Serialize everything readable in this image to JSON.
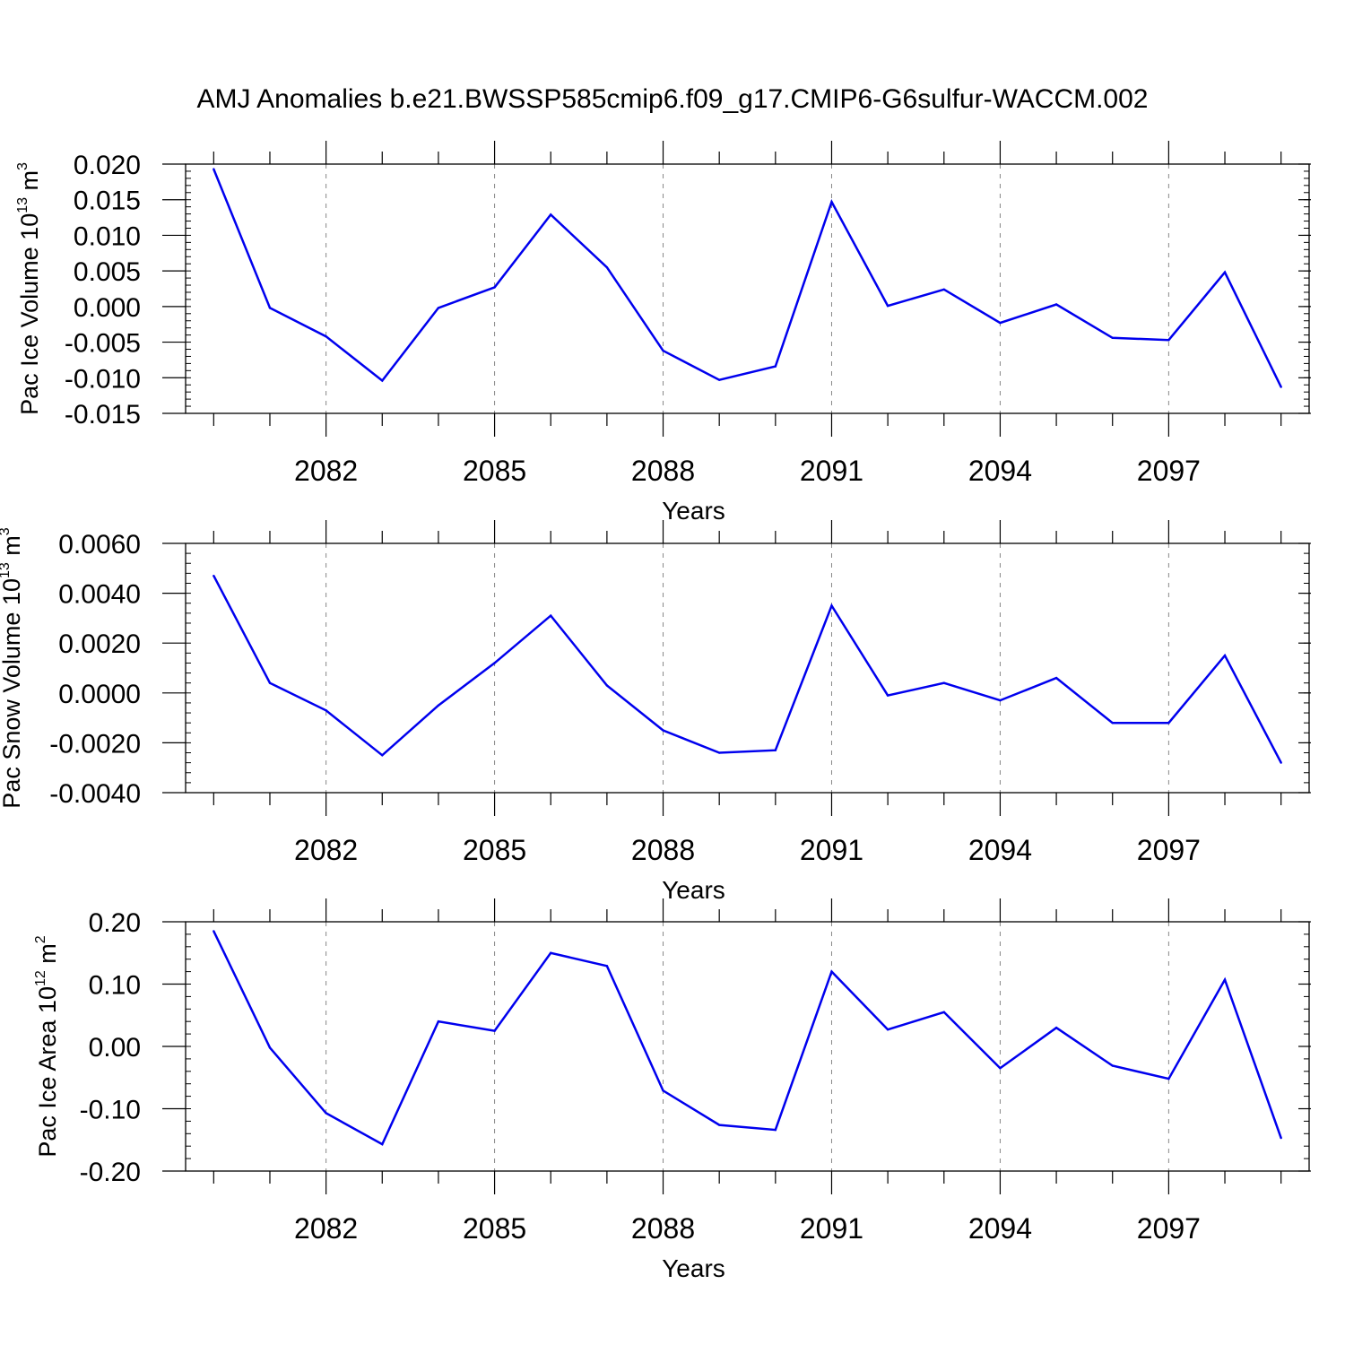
{
  "title": "AMJ Anomalies b.e21.BWSSP585cmip6.f09_g17.CMIP6-G6sulfur-WACCM.002",
  "colors": {
    "line": "#0000ee",
    "axis": "#000000",
    "grid": "#888888"
  },
  "chart_data": [
    {
      "type": "line",
      "ylabel": {
        "main": "Pac Ice Volume 10",
        "sup": "13",
        "unit": " m",
        "unit_sup": "3"
      },
      "xlabel": "Years",
      "x": [
        2080,
        2081,
        2082,
        2083,
        2084,
        2085,
        2086,
        2087,
        2088,
        2089,
        2090,
        2091,
        2092,
        2093,
        2094,
        2095,
        2096,
        2097,
        2098,
        2099
      ],
      "series": [
        {
          "name": "Pac Ice Volume",
          "values": [
            0.0193,
            -0.0002,
            -0.0042,
            -0.0104,
            -0.0002,
            0.0027,
            0.0129,
            0.0055,
            -0.0062,
            -0.0103,
            -0.0084,
            0.0147,
            0.0001,
            0.0024,
            -0.0023,
            0.0003,
            -0.0044,
            -0.0047,
            0.0048,
            -0.0113
          ]
        }
      ],
      "xlim": [
        2079.5,
        2099.5
      ],
      "ylim": [
        -0.015,
        0.02
      ],
      "xticks": [
        2082,
        2085,
        2088,
        2091,
        2094,
        2097
      ],
      "xtick_labels": [
        "2082",
        "2085",
        "2088",
        "2091",
        "2094",
        "2097"
      ],
      "yticks": [
        0.02,
        0.015,
        0.01,
        0.005,
        0.0,
        -0.005,
        -0.01,
        -0.015
      ],
      "ytick_labels": [
        "0.020",
        "0.015",
        "0.010",
        "0.005",
        "0.000",
        "-0.005",
        "-0.010",
        "-0.015"
      ],
      "minor_yticks": 0.001,
      "grid": "dashed vertical at major x ticks"
    },
    {
      "type": "line",
      "ylabel": {
        "main": "Pac Snow Volume 10",
        "sup": "13",
        "unit": " m",
        "unit_sup": "3"
      },
      "xlabel": "Years",
      "x": [
        2080,
        2081,
        2082,
        2083,
        2084,
        2085,
        2086,
        2087,
        2088,
        2089,
        2090,
        2091,
        2092,
        2093,
        2094,
        2095,
        2096,
        2097,
        2098,
        2099
      ],
      "series": [
        {
          "name": "Pac Snow Volume",
          "values": [
            0.0047,
            0.0004,
            -0.0007,
            -0.0025,
            -0.0005,
            0.0012,
            0.0031,
            0.0003,
            -0.0015,
            -0.0024,
            -0.0023,
            0.0035,
            -0.0001,
            0.0004,
            -0.0003,
            0.0006,
            -0.0012,
            -0.0012,
            0.0015,
            -0.0028
          ]
        }
      ],
      "xlim": [
        2079.5,
        2099.5
      ],
      "ylim": [
        -0.004,
        0.006
      ],
      "xticks": [
        2082,
        2085,
        2088,
        2091,
        2094,
        2097
      ],
      "xtick_labels": [
        "2082",
        "2085",
        "2088",
        "2091",
        "2094",
        "2097"
      ],
      "yticks": [
        0.006,
        0.004,
        0.002,
        0.0,
        -0.002,
        -0.004
      ],
      "ytick_labels": [
        "0.0060",
        "0.0040",
        "0.0020",
        "0.0000",
        "-0.0020",
        "-0.0040"
      ],
      "minor_yticks": 0.0004,
      "grid": "dashed vertical at major x ticks"
    },
    {
      "type": "line",
      "ylabel": {
        "main": "Pac Ice Area 10",
        "sup": "12",
        "unit": " m",
        "unit_sup": "2"
      },
      "xlabel": "Years",
      "x": [
        2080,
        2081,
        2082,
        2083,
        2084,
        2085,
        2086,
        2087,
        2088,
        2089,
        2090,
        2091,
        2092,
        2093,
        2094,
        2095,
        2096,
        2097,
        2098,
        2099
      ],
      "series": [
        {
          "name": "Pac Ice Area",
          "values": [
            0.185,
            -0.002,
            -0.107,
            -0.157,
            0.04,
            0.025,
            0.15,
            0.129,
            -0.071,
            -0.126,
            -0.134,
            0.12,
            0.027,
            0.055,
            -0.035,
            0.03,
            -0.031,
            -0.052,
            0.107,
            -0.147
          ]
        }
      ],
      "xlim": [
        2079.5,
        2099.5
      ],
      "ylim": [
        -0.2,
        0.2
      ],
      "xticks": [
        2082,
        2085,
        2088,
        2091,
        2094,
        2097
      ],
      "xtick_labels": [
        "2082",
        "2085",
        "2088",
        "2091",
        "2094",
        "2097"
      ],
      "yticks": [
        0.2,
        0.1,
        0.0,
        -0.1,
        -0.2
      ],
      "ytick_labels": [
        "0.20",
        "0.10",
        "0.00",
        "-0.10",
        "-0.20"
      ],
      "minor_yticks": 0.02,
      "grid": "dashed vertical at major x ticks"
    }
  ]
}
